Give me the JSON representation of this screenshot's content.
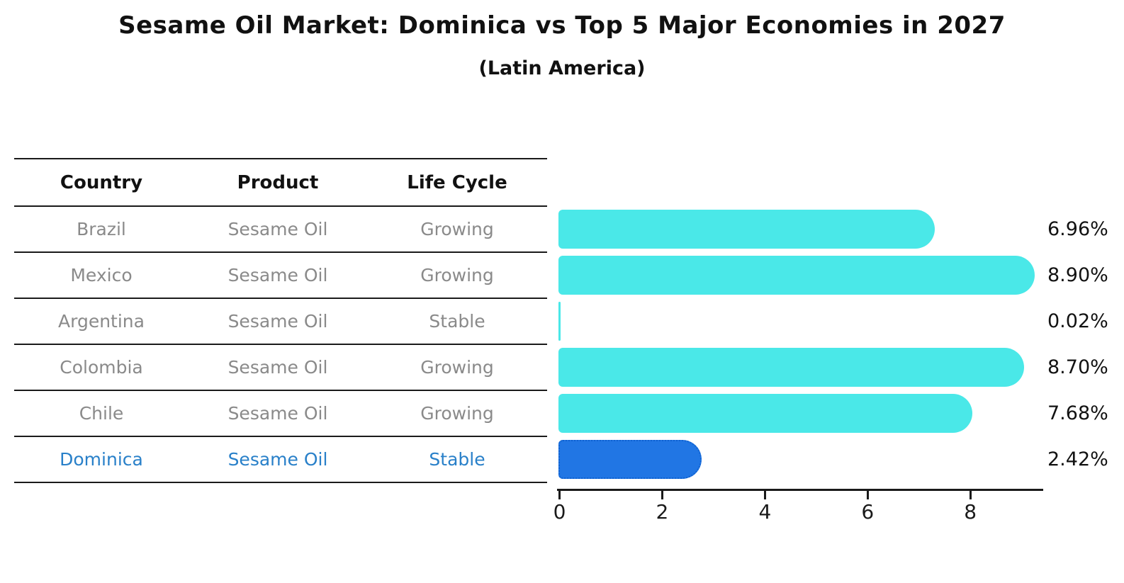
{
  "title": "Sesame Oil Market: Dominica vs Top 5 Major Economies in 2027",
  "subtitle": "(Latin America)",
  "table": {
    "headers": [
      "Country",
      "Product",
      "Life Cycle"
    ],
    "rows": [
      {
        "country": "Brazil",
        "product": "Sesame Oil",
        "life_cycle": "Growing",
        "highlight": false
      },
      {
        "country": "Mexico",
        "product": "Sesame Oil",
        "life_cycle": "Growing",
        "highlight": false
      },
      {
        "country": "Argentina",
        "product": "Sesame Oil",
        "life_cycle": "Stable",
        "highlight": false
      },
      {
        "country": "Colombia",
        "product": "Sesame Oil",
        "life_cycle": "Growing",
        "highlight": false
      },
      {
        "country": "Chile",
        "product": "Sesame Oil",
        "life_cycle": "Growing",
        "highlight": false
      },
      {
        "country": "Dominica",
        "product": "Sesame Oil",
        "life_cycle": "Stable",
        "highlight": true
      }
    ]
  },
  "chart_data": {
    "type": "bar",
    "orientation": "horizontal",
    "title": "Sesame Oil Market: Dominica vs Top 5 Major Economies in 2027",
    "subtitle": "(Latin America)",
    "categories": [
      "Brazil",
      "Mexico",
      "Argentina",
      "Colombia",
      "Chile",
      "Dominica"
    ],
    "values": [
      6.96,
      8.9,
      0.02,
      8.7,
      7.68,
      2.42
    ],
    "value_labels": [
      "6.96%",
      "8.90%",
      "0.02%",
      "8.70%",
      "7.68%",
      "2.42%"
    ],
    "x_ticks": [
      0,
      2,
      4,
      6,
      8
    ],
    "xlim": [
      0,
      9.37
    ],
    "grid": false,
    "legend": false,
    "highlight_index": 5,
    "highlight_category": "Dominica"
  },
  "colors": {
    "bar": "#4ae8e8",
    "highlight_bar": "#2176e4",
    "highlight_bar_border": "#0f62d1",
    "highlight_text": "#2980c9",
    "row_text": "#8a8a8a",
    "header_text": "#111111",
    "axis": "#1a1a1a"
  }
}
